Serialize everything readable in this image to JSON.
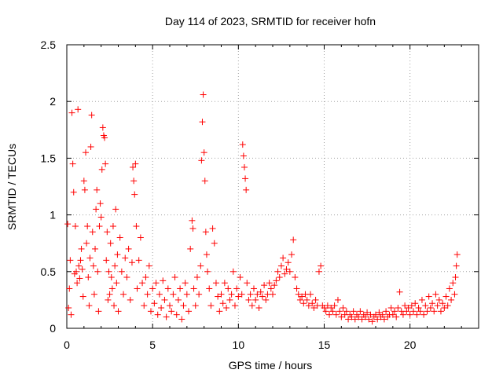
{
  "chart_data": {
    "type": "scatter",
    "title": "Day 114 of 2023, SRMTID for receiver hofn",
    "xlabel": "GPS time / hours",
    "ylabel": "SRMTID / TECUs",
    "xlim": [
      0,
      24
    ],
    "ylim": [
      0,
      2.5
    ],
    "xticks": [
      0,
      5,
      10,
      15,
      20
    ],
    "yticks": [
      0,
      0.5,
      1,
      1.5,
      2,
      2.5
    ],
    "grid": true,
    "marker": "+",
    "color": "#ff0000",
    "series": [
      {
        "name": "SRMTID",
        "points": [
          [
            0.05,
            0.92
          ],
          [
            0.1,
            0.18
          ],
          [
            0.15,
            0.35
          ],
          [
            0.2,
            0.6
          ],
          [
            0.25,
            0.12
          ],
          [
            0.3,
            1.9
          ],
          [
            0.35,
            1.45
          ],
          [
            0.4,
            1.2
          ],
          [
            0.45,
            0.48
          ],
          [
            0.5,
            0.9
          ],
          [
            0.55,
            0.5
          ],
          [
            0.6,
            0.4
          ],
          [
            0.65,
            1.93
          ],
          [
            0.7,
            0.55
          ],
          [
            0.75,
            0.44
          ],
          [
            0.8,
            0.6
          ],
          [
            0.85,
            0.7
          ],
          [
            0.9,
            0.52
          ],
          [
            0.95,
            0.28
          ],
          [
            1.0,
            1.3
          ],
          [
            1.05,
            1.22
          ],
          [
            1.1,
            1.55
          ],
          [
            1.15,
            0.75
          ],
          [
            1.2,
            0.9
          ],
          [
            1.25,
            0.45
          ],
          [
            1.3,
            0.2
          ],
          [
            1.35,
            0.62
          ],
          [
            1.4,
            1.6
          ],
          [
            1.45,
            1.88
          ],
          [
            1.5,
            0.85
          ],
          [
            1.55,
            0.55
          ],
          [
            1.6,
            0.3
          ],
          [
            1.65,
            0.7
          ],
          [
            1.7,
            1.05
          ],
          [
            1.75,
            1.22
          ],
          [
            1.8,
            0.5
          ],
          [
            1.85,
            0.15
          ],
          [
            1.9,
            0.9
          ],
          [
            1.95,
            1.1
          ],
          [
            2.0,
            0.98
          ],
          [
            2.05,
            1.4
          ],
          [
            2.1,
            1.77
          ],
          [
            2.15,
            1.7
          ],
          [
            2.2,
            1.68
          ],
          [
            2.25,
            1.45
          ],
          [
            2.3,
            0.6
          ],
          [
            2.35,
            0.85
          ],
          [
            2.4,
            0.25
          ],
          [
            2.45,
            0.5
          ],
          [
            2.5,
            0.3
          ],
          [
            2.55,
            0.75
          ],
          [
            2.6,
            0.45
          ],
          [
            2.65,
            0.35
          ],
          [
            2.7,
            0.9
          ],
          [
            2.75,
            0.2
          ],
          [
            2.8,
            0.55
          ],
          [
            2.85,
            1.05
          ],
          [
            2.9,
            0.4
          ],
          [
            2.95,
            0.65
          ],
          [
            3.0,
            0.15
          ],
          [
            3.1,
            0.8
          ],
          [
            3.2,
            0.5
          ],
          [
            3.3,
            0.3
          ],
          [
            3.4,
            0.62
          ],
          [
            3.5,
            0.45
          ],
          [
            3.6,
            0.7
          ],
          [
            3.7,
            0.25
          ],
          [
            3.8,
            0.58
          ],
          [
            3.85,
            1.42
          ],
          [
            3.9,
            1.3
          ],
          [
            3.95,
            1.18
          ],
          [
            4.0,
            1.45
          ],
          [
            4.05,
            0.9
          ],
          [
            4.1,
            0.35
          ],
          [
            4.2,
            0.6
          ],
          [
            4.3,
            0.8
          ],
          [
            4.4,
            0.4
          ],
          [
            4.5,
            0.2
          ],
          [
            4.6,
            0.45
          ],
          [
            4.7,
            0.3
          ],
          [
            4.8,
            0.55
          ],
          [
            4.9,
            0.15
          ],
          [
            5.0,
            0.35
          ],
          [
            5.1,
            0.22
          ],
          [
            5.2,
            0.4
          ],
          [
            5.3,
            0.12
          ],
          [
            5.4,
            0.3
          ],
          [
            5.5,
            0.18
          ],
          [
            5.6,
            0.42
          ],
          [
            5.7,
            0.25
          ],
          [
            5.8,
            0.1
          ],
          [
            5.9,
            0.35
          ],
          [
            6.0,
            0.2
          ],
          [
            6.1,
            0.15
          ],
          [
            6.2,
            0.3
          ],
          [
            6.3,
            0.45
          ],
          [
            6.4,
            0.12
          ],
          [
            6.5,
            0.25
          ],
          [
            6.6,
            0.35
          ],
          [
            6.7,
            0.08
          ],
          [
            6.8,
            0.2
          ],
          [
            6.9,
            0.4
          ],
          [
            7.0,
            0.3
          ],
          [
            7.1,
            0.15
          ],
          [
            7.2,
            0.7
          ],
          [
            7.3,
            0.95
          ],
          [
            7.35,
            0.88
          ],
          [
            7.4,
            0.35
          ],
          [
            7.5,
            0.2
          ],
          [
            7.6,
            0.45
          ],
          [
            7.7,
            0.3
          ],
          [
            7.8,
            0.55
          ],
          [
            7.85,
            1.48
          ],
          [
            7.9,
            1.82
          ],
          [
            7.95,
            2.06
          ],
          [
            8.0,
            1.55
          ],
          [
            8.05,
            1.3
          ],
          [
            8.1,
            0.85
          ],
          [
            8.15,
            0.65
          ],
          [
            8.2,
            0.5
          ],
          [
            8.3,
            0.35
          ],
          [
            8.4,
            0.2
          ],
          [
            8.5,
            0.88
          ],
          [
            8.6,
            0.75
          ],
          [
            8.7,
            0.4
          ],
          [
            8.8,
            0.28
          ],
          [
            8.9,
            0.15
          ],
          [
            9.0,
            0.3
          ],
          [
            9.1,
            0.22
          ],
          [
            9.2,
            0.4
          ],
          [
            9.3,
            0.18
          ],
          [
            9.4,
            0.35
          ],
          [
            9.5,
            0.25
          ],
          [
            9.6,
            0.3
          ],
          [
            9.7,
            0.5
          ],
          [
            9.8,
            0.2
          ],
          [
            9.9,
            0.35
          ],
          [
            10.0,
            0.28
          ],
          [
            10.1,
            0.45
          ],
          [
            10.2,
            0.3
          ],
          [
            10.25,
            1.62
          ],
          [
            10.3,
            1.52
          ],
          [
            10.35,
            1.42
          ],
          [
            10.4,
            1.32
          ],
          [
            10.45,
            1.22
          ],
          [
            10.5,
            0.4
          ],
          [
            10.6,
            0.25
          ],
          [
            10.7,
            0.3
          ],
          [
            10.8,
            0.2
          ],
          [
            10.9,
            0.35
          ],
          [
            11.0,
            0.25
          ],
          [
            11.1,
            0.3
          ],
          [
            11.2,
            0.18
          ],
          [
            11.3,
            0.32
          ],
          [
            11.4,
            0.28
          ],
          [
            11.5,
            0.38
          ],
          [
            11.6,
            0.25
          ],
          [
            11.7,
            0.3
          ],
          [
            11.8,
            0.4
          ],
          [
            11.9,
            0.35
          ],
          [
            12.0,
            0.3
          ],
          [
            12.1,
            0.38
          ],
          [
            12.2,
            0.42
          ],
          [
            12.3,
            0.5
          ],
          [
            12.4,
            0.45
          ],
          [
            12.5,
            0.55
          ],
          [
            12.6,
            0.62
          ],
          [
            12.7,
            0.48
          ],
          [
            12.8,
            0.52
          ],
          [
            12.9,
            0.58
          ],
          [
            13.0,
            0.5
          ],
          [
            13.1,
            0.65
          ],
          [
            13.2,
            0.78
          ],
          [
            13.3,
            0.45
          ],
          [
            13.4,
            0.35
          ],
          [
            13.5,
            0.3
          ],
          [
            13.6,
            0.25
          ],
          [
            13.7,
            0.28
          ],
          [
            13.8,
            0.22
          ],
          [
            13.9,
            0.3
          ],
          [
            14.0,
            0.25
          ],
          [
            14.1,
            0.2
          ],
          [
            14.2,
            0.3
          ],
          [
            14.3,
            0.22
          ],
          [
            14.4,
            0.18
          ],
          [
            14.5,
            0.25
          ],
          [
            14.6,
            0.2
          ],
          [
            14.7,
            0.5
          ],
          [
            14.8,
            0.55
          ],
          [
            14.9,
            0.2
          ],
          [
            15.0,
            0.18
          ],
          [
            15.1,
            0.15
          ],
          [
            15.2,
            0.2
          ],
          [
            15.3,
            0.12
          ],
          [
            15.4,
            0.18
          ],
          [
            15.5,
            0.15
          ],
          [
            15.6,
            0.2
          ],
          [
            15.7,
            0.12
          ],
          [
            15.8,
            0.25
          ],
          [
            15.9,
            0.15
          ],
          [
            16.0,
            0.1
          ],
          [
            16.1,
            0.18
          ],
          [
            16.2,
            0.12
          ],
          [
            16.3,
            0.15
          ],
          [
            16.4,
            0.08
          ],
          [
            16.5,
            0.12
          ],
          [
            16.6,
            0.1
          ],
          [
            16.7,
            0.15
          ],
          [
            16.8,
            0.08
          ],
          [
            16.9,
            0.12
          ],
          [
            17.0,
            0.1
          ],
          [
            17.1,
            0.15
          ],
          [
            17.2,
            0.08
          ],
          [
            17.3,
            0.12
          ],
          [
            17.4,
            0.1
          ],
          [
            17.5,
            0.14
          ],
          [
            17.6,
            0.08
          ],
          [
            17.7,
            0.12
          ],
          [
            17.8,
            0.06
          ],
          [
            17.9,
            0.1
          ],
          [
            18.0,
            0.12
          ],
          [
            18.1,
            0.08
          ],
          [
            18.2,
            0.14
          ],
          [
            18.3,
            0.1
          ],
          [
            18.4,
            0.12
          ],
          [
            18.5,
            0.08
          ],
          [
            18.6,
            0.15
          ],
          [
            18.7,
            0.1
          ],
          [
            18.8,
            0.12
          ],
          [
            18.9,
            0.18
          ],
          [
            19.0,
            0.12
          ],
          [
            19.1,
            0.15
          ],
          [
            19.2,
            0.1
          ],
          [
            19.3,
            0.18
          ],
          [
            19.4,
            0.32
          ],
          [
            19.5,
            0.15
          ],
          [
            19.6,
            0.12
          ],
          [
            19.7,
            0.2
          ],
          [
            19.8,
            0.15
          ],
          [
            19.9,
            0.18
          ],
          [
            20.0,
            0.12
          ],
          [
            20.1,
            0.2
          ],
          [
            20.2,
            0.15
          ],
          [
            20.3,
            0.22
          ],
          [
            20.4,
            0.12
          ],
          [
            20.5,
            0.18
          ],
          [
            20.6,
            0.15
          ],
          [
            20.7,
            0.25
          ],
          [
            20.8,
            0.12
          ],
          [
            20.9,
            0.2
          ],
          [
            21.0,
            0.15
          ],
          [
            21.1,
            0.28
          ],
          [
            21.2,
            0.18
          ],
          [
            21.3,
            0.22
          ],
          [
            21.4,
            0.15
          ],
          [
            21.5,
            0.3
          ],
          [
            21.6,
            0.2
          ],
          [
            21.7,
            0.25
          ],
          [
            21.8,
            0.15
          ],
          [
            21.9,
            0.22
          ],
          [
            22.0,
            0.18
          ],
          [
            22.1,
            0.28
          ],
          [
            22.2,
            0.2
          ],
          [
            22.3,
            0.35
          ],
          [
            22.4,
            0.25
          ],
          [
            22.5,
            0.4
          ],
          [
            22.6,
            0.3
          ],
          [
            22.65,
            0.45
          ],
          [
            22.7,
            0.55
          ],
          [
            22.75,
            0.65
          ]
        ]
      }
    ]
  }
}
